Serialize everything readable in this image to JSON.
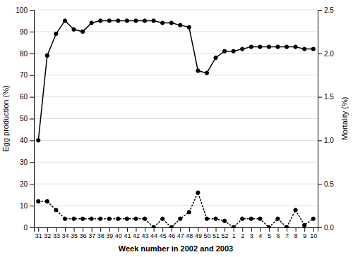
{
  "chart_data": {
    "type": "line",
    "xlabel": "Week number in 2002 and 2003",
    "ylabel": "Egg production (%)",
    "y2label": "Mortality (%)",
    "categories": [
      "31",
      "32",
      "33",
      "34",
      "35",
      "36",
      "37",
      "38",
      "39",
      "40",
      "41",
      "42",
      "43",
      "44",
      "45",
      "46",
      "47",
      "48",
      "49",
      "50",
      "51",
      "52",
      "1",
      "2",
      "3",
      "4",
      "5",
      "6",
      "7",
      "8",
      "9",
      "10"
    ],
    "series": [
      {
        "values": [
          40,
          79,
          89,
          95,
          91,
          90,
          94,
          95,
          95,
          95,
          95,
          95,
          95,
          95,
          94,
          94,
          93,
          92,
          72,
          71,
          78,
          81,
          81,
          82,
          83,
          83,
          83,
          83,
          83,
          83,
          82,
          82
        ],
        "color": "#000000",
        "line_style": "solid",
        "marker": "circle"
      },
      {
        "values": [
          0.3,
          0.3,
          0.2,
          0.1,
          0.1,
          0.1,
          0.1,
          0.1,
          0.1,
          0.1,
          0.1,
          0.1,
          0.1,
          0.0,
          0.1,
          0.0,
          0.1,
          0.175,
          0.4,
          0.1,
          0.1,
          0.075,
          0.0,
          0.1,
          0.1,
          0.1,
          0.0,
          0.1,
          0.0,
          0.2,
          0.025,
          0.1
        ],
        "color": "#000000",
        "line_style": "dotted",
        "marker": "circle",
        "axis": "y2"
      }
    ],
    "ylim": [
      0,
      100
    ],
    "yticks": [
      0,
      10,
      20,
      30,
      40,
      50,
      60,
      70,
      80,
      90,
      100
    ],
    "y2lim": [
      0,
      2.5
    ],
    "y2ticks": [
      {
        "value": 0,
        "label": "0.0"
      },
      0.5,
      {
        "value": 1.0,
        "label": "1.0"
      },
      1.5,
      {
        "value": 2.0,
        "label": "2.0"
      },
      2.5
    ],
    "grid": true
  }
}
